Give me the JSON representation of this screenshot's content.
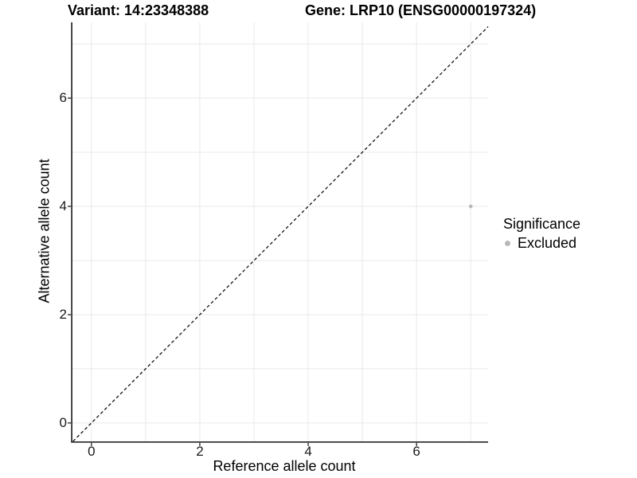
{
  "chart_data": {
    "type": "scatter",
    "title_left": "Variant: 14:23348388",
    "title_right": "Gene: LRP10 (ENSG00000197324)",
    "xlabel": "Reference allele count",
    "ylabel": "Alternative allele count",
    "xlim": [
      -0.35,
      7.32
    ],
    "ylim": [
      -0.34,
      7.4
    ],
    "xticks": [
      0,
      2,
      4,
      6
    ],
    "yticks": [
      0,
      2,
      4,
      6
    ],
    "gridlines_x": [
      0,
      1,
      2,
      3,
      4,
      5,
      6,
      7
    ],
    "gridlines_y": [
      0,
      1,
      2,
      3,
      4,
      5,
      6,
      7
    ],
    "grid_on": true,
    "points": [
      {
        "x": 7,
        "y": 4,
        "series": "Excluded"
      }
    ],
    "identity_line": {
      "equation": "y = x",
      "style": "dashed"
    },
    "legend": {
      "title": "Significance",
      "position": "right",
      "entries": [
        {
          "label": "Excluded",
          "color": "#b8b8b8"
        }
      ]
    }
  },
  "colors": {
    "background": "#ffffff",
    "point": "#b8b8b8",
    "grid": "#e9e9e9",
    "axis": "#333333",
    "tick": "#333333",
    "dashed_line": "#000000",
    "text": "#000000"
  }
}
